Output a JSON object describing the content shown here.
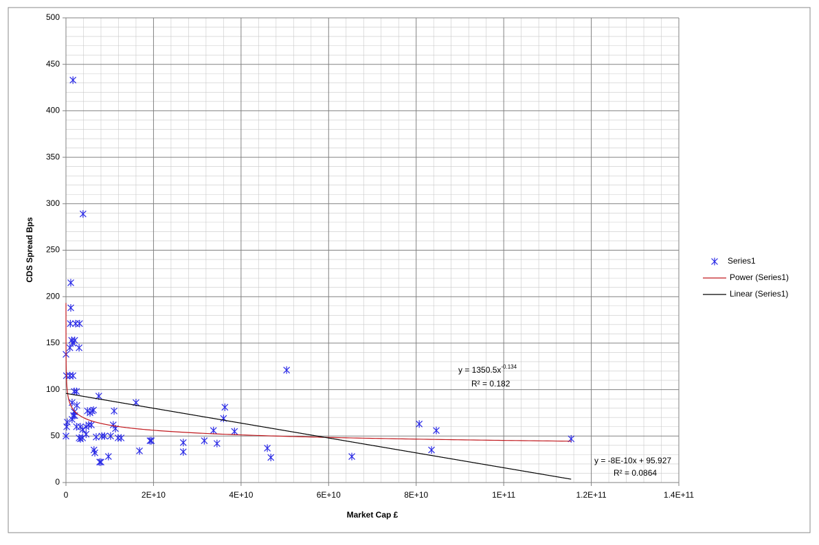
{
  "chart_data": {
    "type": "scatter",
    "xlabel": "Market Cap £",
    "ylabel": "CDS Spread Bps",
    "xlim": [
      0,
      140000000000
    ],
    "ylim": [
      0,
      500
    ],
    "xticks": [
      0,
      {
        "value": 20000000000,
        "label": "2E+10"
      },
      {
        "value": 40000000000,
        "label": "4E+10"
      },
      {
        "value": 60000000000,
        "label": "6E+10"
      },
      {
        "value": 80000000000,
        "label": "8E+10"
      },
      {
        "value": 100000000000,
        "label": "1E+11"
      },
      {
        "value": 120000000000,
        "label": "1.2E+11"
      },
      {
        "value": 140000000000,
        "label": "1.4E+11"
      }
    ],
    "yticks": [
      0,
      50,
      100,
      150,
      200,
      250,
      300,
      350,
      400,
      450,
      500
    ],
    "grid": true,
    "legend": "right",
    "series": [
      {
        "name": "Series1",
        "color": "#2a2ae6",
        "x": [
          1600000000.0,
          3900000000.0,
          1100000000.0,
          1100000000.0,
          1000000000.0,
          2200000000.0,
          3100000000.0,
          1300000000.0,
          2000000000.0,
          1600000000.0,
          900000000.0,
          3000000000.0,
          10000000.0,
          100000000.0,
          900000000.0,
          1600000000.0,
          1900000000.0,
          2400000000.0,
          1400000000.0,
          2500000000.0,
          1900000000.0,
          1700000000.0,
          2000000000.0,
          1400000000.0,
          300000000.0,
          160000000.0,
          2400000000.0,
          3300000000.0,
          4600000000.0,
          3800000000.0,
          2000000.0,
          3000000000.0,
          3800000000.0,
          3300000000.0,
          4600000000.0,
          5200000000.0,
          5800000000.0,
          4900000000.0,
          6000000000.0,
          5500000000.0,
          6300000000.0,
          6400000000.0,
          6600000000.0,
          6900000000.0,
          7500000000.0,
          8200000000.0,
          7700000000.0,
          8000000000.0,
          8800000000.0,
          9700000000.0,
          10200000000.0,
          11000000000.0,
          10800000000.0,
          11300000000.0,
          11900000000.0,
          12600000000.0,
          16000000000.0,
          16800000000.0,
          19200000000.0,
          19500000000.0,
          26800000000.0,
          26800000000.0,
          31600000000.0,
          33700000000.0,
          34500000000.0,
          36300000000.0,
          36000000000.0,
          38500000000.0,
          46000000000.0,
          46800000000.0,
          50400000000.0,
          65300000000.0,
          80700000000.0,
          83500000000.0,
          84600000000.0,
          115400000000.0
        ],
        "values": [
          433,
          289,
          215,
          188,
          171,
          171,
          171,
          153,
          153,
          150,
          145,
          145,
          138,
          115,
          115,
          115,
          98,
          98,
          86,
          83,
          76,
          72,
          72,
          68,
          65,
          60,
          60,
          60,
          60,
          57,
          50,
          48,
          48,
          47,
          52,
          62,
          62,
          77,
          77,
          75,
          78,
          35,
          32,
          49,
          93,
          50,
          22,
          22,
          50,
          28,
          50,
          77,
          62,
          58,
          48,
          48,
          86,
          34,
          45,
          45,
          43,
          33,
          45,
          56,
          42,
          81,
          69,
          55,
          37,
          27,
          121,
          28,
          63,
          35,
          56,
          47
        ]
      }
    ],
    "trendlines": [
      {
        "name": "Power (Series1)",
        "type": "power",
        "color": "#c0171c",
        "a": 1350.5,
        "b": -0.134,
        "equation": "y = 1350.5x",
        "exponent": "-0.134",
        "r2": "R² = 0.182"
      },
      {
        "name": "Linear (Series1)",
        "type": "linear",
        "color": "#000000",
        "a": 95.927,
        "b": -8e-10,
        "equation": "y = -8E-10x + 95.927",
        "r2": "R² = 0.0864"
      }
    ]
  }
}
